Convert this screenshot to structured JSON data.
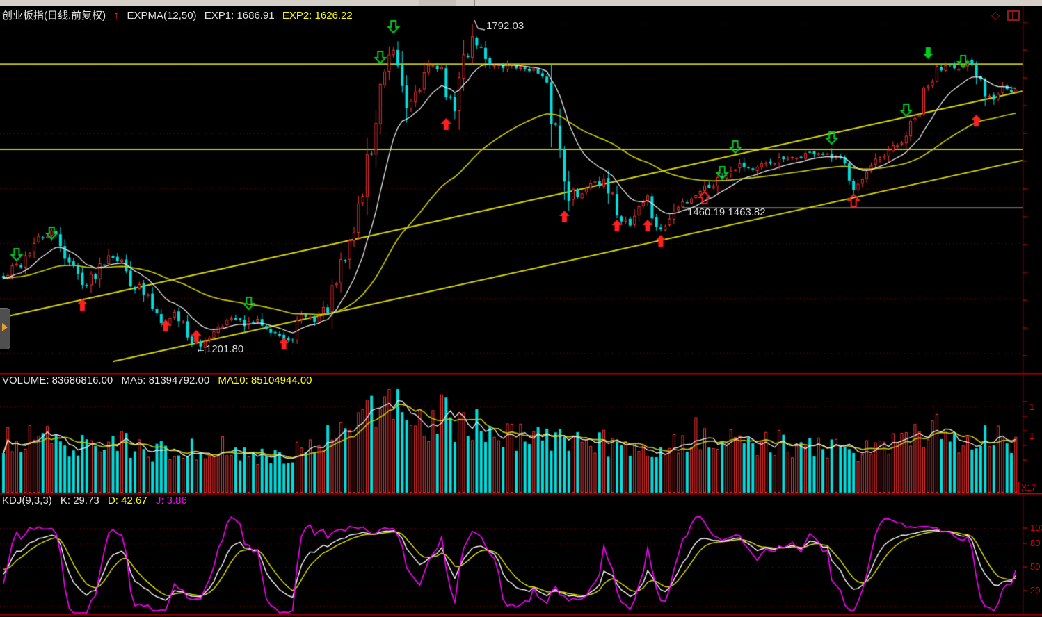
{
  "header": {
    "title": "创业板指(日线.前复权)",
    "trend_arrow": "↑",
    "indicator": "EXPMA(12,50)",
    "exp1": "EXP1: 1686.91",
    "exp2": "EXP2: 1626.22"
  },
  "corner": {
    "diamond": "◇"
  },
  "main": {
    "annotations": {
      "peak": "1792.03",
      "support": "1460.19  1463.82",
      "low": "←1201.80"
    }
  },
  "volume": {
    "label": "VOLUME: 83686816.00",
    "ma5": "MA5: 81394792.00",
    "ma10": "MA10: 85104944.00",
    "axis": [
      "1",
      "1"
    ],
    "x_badge": "X17"
  },
  "kdj": {
    "label": "KDJ(9,3,3)",
    "k": "K: 29.73",
    "d": "D: 42.67",
    "j": "J: 3.86",
    "axis": [
      "100",
      "80",
      "50",
      "20"
    ]
  },
  "colors": {
    "up": "#ff3232",
    "down": "#00dede",
    "exp1": "#e8e8e8",
    "exp2": "#c8c800",
    "vol_ma5": "#e8e8e8",
    "vol_ma10": "#c8c800",
    "k_line": "#ffffff",
    "d_line": "#e8e800",
    "j_line": "#ff00ff",
    "grid": "#7d0000",
    "axis": "#a00000",
    "tick": "#cc0000",
    "hline": "#c9c900",
    "trendline": "#d8d800",
    "support_line": "#a8a8a8",
    "buy_arrow": "#ff2020",
    "sell_arrow": "#00cc22",
    "leader": "#c8c8c8"
  },
  "chart_data": {
    "type": "candlestick",
    "symbol": "创业板指",
    "period": "日线",
    "adjust": "前复权",
    "indicators": {
      "expma": {
        "params": [
          12,
          50
        ],
        "exp1": 1686.91,
        "exp2": 1626.22
      },
      "volume": {
        "current": 83686816.0,
        "ma5": 81394792.0,
        "ma10": 85104944.0
      },
      "kdj": {
        "params": [
          9,
          3,
          3
        ],
        "k": 29.73,
        "d": 42.67,
        "j": 3.86
      }
    },
    "key_prices": {
      "peak_high": 1792.03,
      "major_low": 1201.8,
      "support": 1460.19,
      "support2": 1463.82
    },
    "price_range_visible": [
      1162,
      1813
    ],
    "num_bars": 232,
    "annotation_points": {
      "peak_bar": 107,
      "low_bar": 45,
      "support_bar": 155
    },
    "close_path": [
      [
        0,
        1332
      ],
      [
        2,
        1348
      ],
      [
        4,
        1362
      ],
      [
        6,
        1385
      ],
      [
        8,
        1402
      ],
      [
        11,
        1415
      ],
      [
        13,
        1398
      ],
      [
        15,
        1362
      ],
      [
        17,
        1338
      ],
      [
        19,
        1320
      ],
      [
        21,
        1347
      ],
      [
        24,
        1378
      ],
      [
        26,
        1372
      ],
      [
        28,
        1345
      ],
      [
        30,
        1322
      ],
      [
        33,
        1295
      ],
      [
        35,
        1272
      ],
      [
        37,
        1250
      ],
      [
        39,
        1272
      ],
      [
        41,
        1250
      ],
      [
        43,
        1222
      ],
      [
        45,
        1205
      ],
      [
        47,
        1235
      ],
      [
        49,
        1250
      ],
      [
        52,
        1260
      ],
      [
        55,
        1250
      ],
      [
        58,
        1256
      ],
      [
        61,
        1244
      ],
      [
        63,
        1230
      ],
      [
        65,
        1214
      ],
      [
        67,
        1250
      ],
      [
        69,
        1266
      ],
      [
        71,
        1258
      ],
      [
        73,
        1272
      ],
      [
        75,
        1298
      ],
      [
        77,
        1342
      ],
      [
        79,
        1396
      ],
      [
        81,
        1460
      ],
      [
        83,
        1535
      ],
      [
        85,
        1618
      ],
      [
        87,
        1692
      ],
      [
        89,
        1740
      ],
      [
        90,
        1720
      ],
      [
        91,
        1678
      ],
      [
        92,
        1648
      ],
      [
        94,
        1664
      ],
      [
        96,
        1694
      ],
      [
        98,
        1722
      ],
      [
        100,
        1700
      ],
      [
        102,
        1652
      ],
      [
        103,
        1645
      ],
      [
        105,
        1722
      ],
      [
        107,
        1770
      ],
      [
        108,
        1758
      ],
      [
        110,
        1734
      ],
      [
        112,
        1716
      ],
      [
        114,
        1714
      ],
      [
        116,
        1720
      ],
      [
        118,
        1711
      ],
      [
        120,
        1714
      ],
      [
        122,
        1698
      ],
      [
        124,
        1662
      ],
      [
        126,
        1602
      ],
      [
        128,
        1530
      ],
      [
        129,
        1498
      ],
      [
        131,
        1478
      ],
      [
        133,
        1502
      ],
      [
        135,
        1512
      ],
      [
        137,
        1498
      ],
      [
        139,
        1470
      ],
      [
        141,
        1445
      ],
      [
        143,
        1432
      ],
      [
        145,
        1465
      ],
      [
        147,
        1478
      ],
      [
        148,
        1445
      ],
      [
        150,
        1418
      ],
      [
        151,
        1430
      ],
      [
        153,
        1452
      ],
      [
        155,
        1470
      ],
      [
        157,
        1480
      ],
      [
        159,
        1494
      ],
      [
        162,
        1505
      ],
      [
        165,
        1526
      ],
      [
        168,
        1540
      ],
      [
        171,
        1530
      ],
      [
        174,
        1538
      ],
      [
        177,
        1548
      ],
      [
        180,
        1548
      ],
      [
        183,
        1558
      ],
      [
        186,
        1560
      ],
      [
        188,
        1552
      ],
      [
        191,
        1544
      ],
      [
        193,
        1522
      ],
      [
        194,
        1500
      ],
      [
        196,
        1512
      ],
      [
        198,
        1530
      ],
      [
        200,
        1545
      ],
      [
        202,
        1558
      ],
      [
        204,
        1572
      ],
      [
        206,
        1592
      ],
      [
        208,
        1615
      ],
      [
        210,
        1655
      ],
      [
        212,
        1695
      ],
      [
        214,
        1716
      ],
      [
        216,
        1722
      ],
      [
        218,
        1710
      ],
      [
        220,
        1720
      ],
      [
        222,
        1700
      ],
      [
        224,
        1672
      ],
      [
        226,
        1660
      ],
      [
        228,
        1682
      ],
      [
        230,
        1668
      ],
      [
        231,
        1672
      ]
    ],
    "volume_path": [
      [
        0,
        0.5
      ],
      [
        8,
        0.55
      ],
      [
        14,
        0.48
      ],
      [
        20,
        0.45
      ],
      [
        26,
        0.5
      ],
      [
        32,
        0.42
      ],
      [
        38,
        0.4
      ],
      [
        44,
        0.42
      ],
      [
        50,
        0.44
      ],
      [
        56,
        0.35
      ],
      [
        62,
        0.36
      ],
      [
        68,
        0.4
      ],
      [
        72,
        0.52
      ],
      [
        76,
        0.6
      ],
      [
        80,
        0.7
      ],
      [
        83,
        0.82
      ],
      [
        86,
        0.92
      ],
      [
        88,
        1.0
      ],
      [
        90,
        0.88
      ],
      [
        92,
        0.62
      ],
      [
        95,
        0.66
      ],
      [
        98,
        0.72
      ],
      [
        101,
        0.78
      ],
      [
        104,
        0.65
      ],
      [
        107,
        0.68
      ],
      [
        110,
        0.62
      ],
      [
        114,
        0.55
      ],
      [
        118,
        0.56
      ],
      [
        122,
        0.52
      ],
      [
        126,
        0.5
      ],
      [
        130,
        0.48
      ],
      [
        134,
        0.52
      ],
      [
        138,
        0.48
      ],
      [
        142,
        0.46
      ],
      [
        146,
        0.44
      ],
      [
        150,
        0.46
      ],
      [
        154,
        0.5
      ],
      [
        158,
        0.6
      ],
      [
        161,
        0.52
      ],
      [
        165,
        0.48
      ],
      [
        169,
        0.52
      ],
      [
        173,
        0.47
      ],
      [
        177,
        0.5
      ],
      [
        181,
        0.45
      ],
      [
        185,
        0.47
      ],
      [
        189,
        0.42
      ],
      [
        193,
        0.4
      ],
      [
        197,
        0.44
      ],
      [
        201,
        0.46
      ],
      [
        205,
        0.5
      ],
      [
        209,
        0.58
      ],
      [
        212,
        0.66
      ],
      [
        215,
        0.58
      ],
      [
        218,
        0.52
      ],
      [
        221,
        0.55
      ],
      [
        224,
        0.56
      ],
      [
        227,
        0.58
      ],
      [
        230,
        0.52
      ]
    ],
    "hlines": [
      {
        "price": 1720,
        "type": "yellow"
      },
      {
        "price": 1566,
        "type": "yellow"
      },
      {
        "price": 1460.19,
        "type": "gray",
        "from_bar": 155
      }
    ],
    "trendlines": [
      {
        "from": [
          0,
          1263
        ],
        "to": [
          232.5,
          1671
        ]
      },
      {
        "from": [
          25,
          1183
        ],
        "to": [
          232.5,
          1546
        ]
      }
    ],
    "markers": {
      "buy": [
        [
          18,
          430,
          1
        ],
        [
          37,
          460,
          1
        ],
        [
          44,
          475,
          1
        ],
        [
          64,
          486,
          1
        ],
        [
          101,
          170,
          1
        ],
        [
          128,
          303,
          1
        ],
        [
          140,
          316,
          1
        ],
        [
          147,
          316,
          1
        ],
        [
          150,
          338,
          1
        ],
        [
          160,
          276,
          0
        ],
        [
          194,
          280,
          0
        ],
        [
          222,
          165,
          1
        ]
      ],
      "sell": [
        [
          3,
          358,
          0
        ],
        [
          11,
          327,
          0
        ],
        [
          56,
          428,
          0
        ],
        [
          86,
          74,
          0
        ],
        [
          89,
          30,
          0
        ],
        [
          164,
          240,
          0
        ],
        [
          167,
          203,
          0
        ],
        [
          189,
          190,
          0
        ],
        [
          206,
          150,
          0
        ],
        [
          211,
          68,
          1
        ],
        [
          219,
          80,
          0
        ]
      ]
    },
    "seed": 42
  }
}
